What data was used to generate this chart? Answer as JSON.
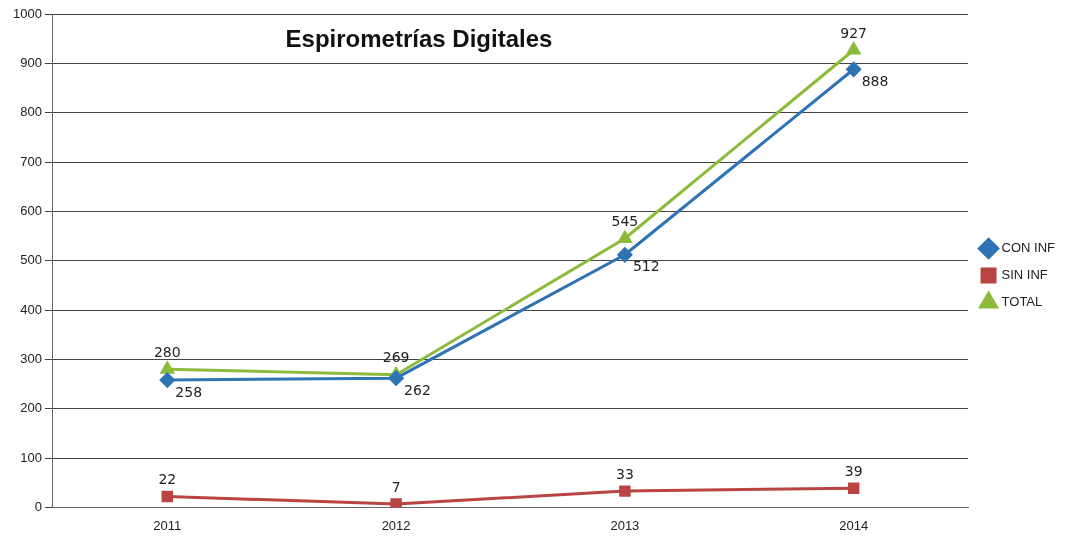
{
  "chart_data": {
    "type": "line",
    "title": "Espirometrías Digitales",
    "categories": [
      "2011",
      "2012",
      "2013",
      "2014"
    ],
    "series": [
      {
        "name": "CON INF",
        "color": "#2e74b5",
        "values": [
          258,
          262,
          512,
          888
        ],
        "marker": "diamond"
      },
      {
        "name": "SIN INF",
        "color": "#b94441",
        "values": [
          22,
          7,
          33,
          39
        ],
        "marker": "square"
      },
      {
        "name": "TOTAL",
        "color": "#8cbb3c",
        "values": [
          280,
          269,
          545,
          927
        ],
        "marker": "triangle"
      }
    ],
    "ylim": [
      0,
      1000
    ],
    "yticks": [
      0,
      100,
      200,
      300,
      400,
      500,
      600,
      700,
      800,
      900,
      1000
    ],
    "grid": "y",
    "legend": "right",
    "data_labels": true
  }
}
